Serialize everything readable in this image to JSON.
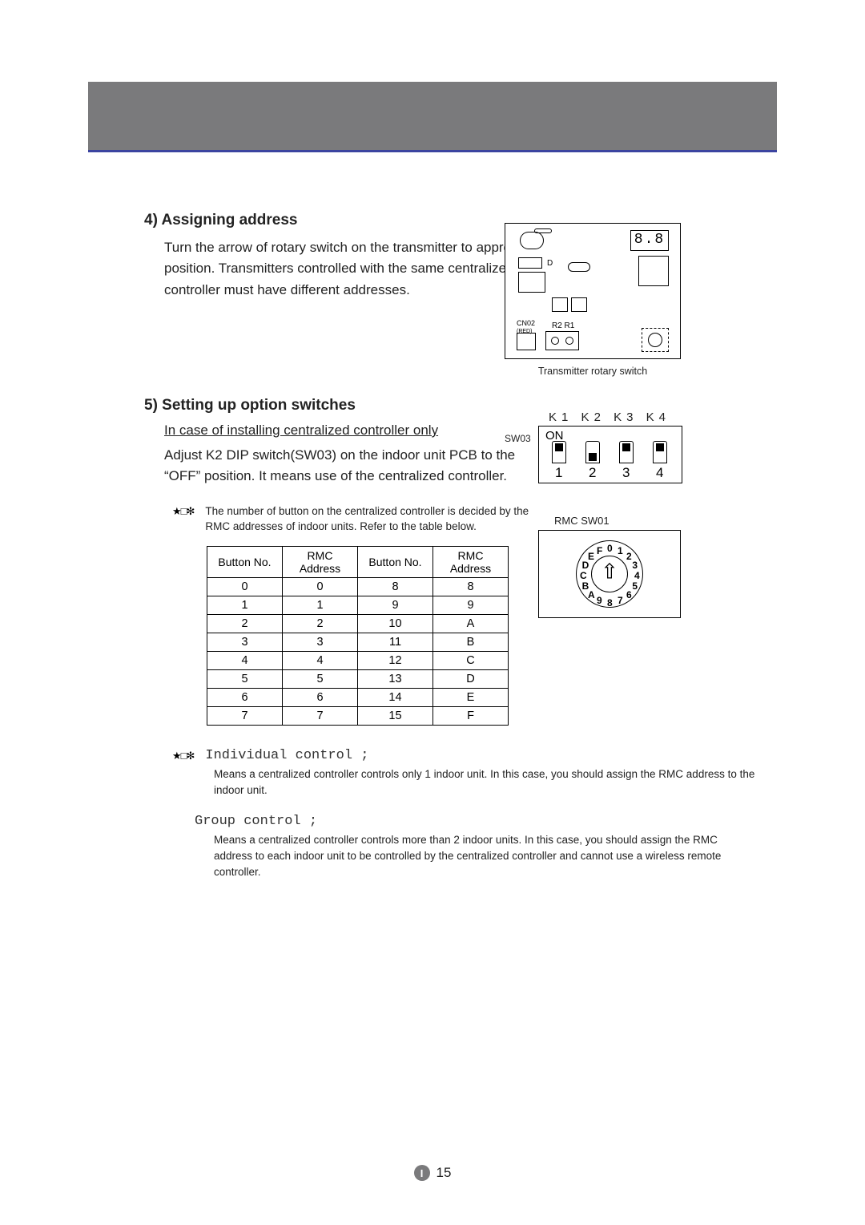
{
  "colors": {
    "header_bg": "#7a7a7c",
    "header_underline": "#3b44a0",
    "text": "#222222",
    "border": "#000000",
    "page_bg": "#ffffff"
  },
  "section4": {
    "title": "4) Assigning address",
    "body": "Turn the arrow of rotary switch on the transmitter to appropriate position. Transmitters controlled with the same centralized controller must have different addresses."
  },
  "fig1": {
    "caption": "Transmitter rotary switch",
    "display": "8.8",
    "cn02_label": "CN02",
    "cn02_sub": "(RED)",
    "r_label": "R2 R1",
    "d_label": "D"
  },
  "section5": {
    "title": "5) Setting up option switches",
    "subtitle": "In case of installing centralized controller only",
    "body": "Adjust K2 DIP switch(SW03) on the indoor unit PCB to the “OFF” position. It means use of the centralized controller.",
    "note_icon": "★□✻",
    "note": "The number of button on the centralized controller is decided by the RMC addresses of indoor units. Refer to the table below."
  },
  "fig2": {
    "k_labels": "K1 K2 K3 K4",
    "sw_label": "SW03",
    "on_label": "ON",
    "positions": [
      "up",
      "down",
      "up",
      "up"
    ],
    "numbers": [
      "1",
      "2",
      "3",
      "4"
    ]
  },
  "fig3": {
    "labels": "RMC    SW01",
    "chars": [
      "0",
      "1",
      "2",
      "3",
      "4",
      "5",
      "6",
      "7",
      "8",
      "9",
      "A",
      "B",
      "C",
      "D",
      "E",
      "F"
    ],
    "arrow": "⇧"
  },
  "table": {
    "headers": [
      "Button No.",
      "RMC\nAddress",
      "Button No.",
      "RMC\nAddress"
    ],
    "rows": [
      [
        "0",
        "0",
        "8",
        "8"
      ],
      [
        "1",
        "1",
        "9",
        "9"
      ],
      [
        "2",
        "2",
        "10",
        "A"
      ],
      [
        "3",
        "3",
        "11",
        "B"
      ],
      [
        "4",
        "4",
        "12",
        "C"
      ],
      [
        "5",
        "5",
        "13",
        "D"
      ],
      [
        "6",
        "6",
        "14",
        "E"
      ],
      [
        "7",
        "7",
        "15",
        "F"
      ]
    ]
  },
  "defs": {
    "icon": "★□✻",
    "individual_title": "Individual control ;",
    "individual_body": "Means a centralized controller controls only 1 indoor unit. In this case, you should assign the RMC address to the indoor unit.",
    "group_title": "Group control ;",
    "group_body": "Means a centralized controller controls more than 2 indoor units. In this case, you should assign the RMC address to each indoor unit to be controlled by the centralized controller and cannot use a wireless remote controller."
  },
  "footer": {
    "badge": "I",
    "page": "15"
  }
}
